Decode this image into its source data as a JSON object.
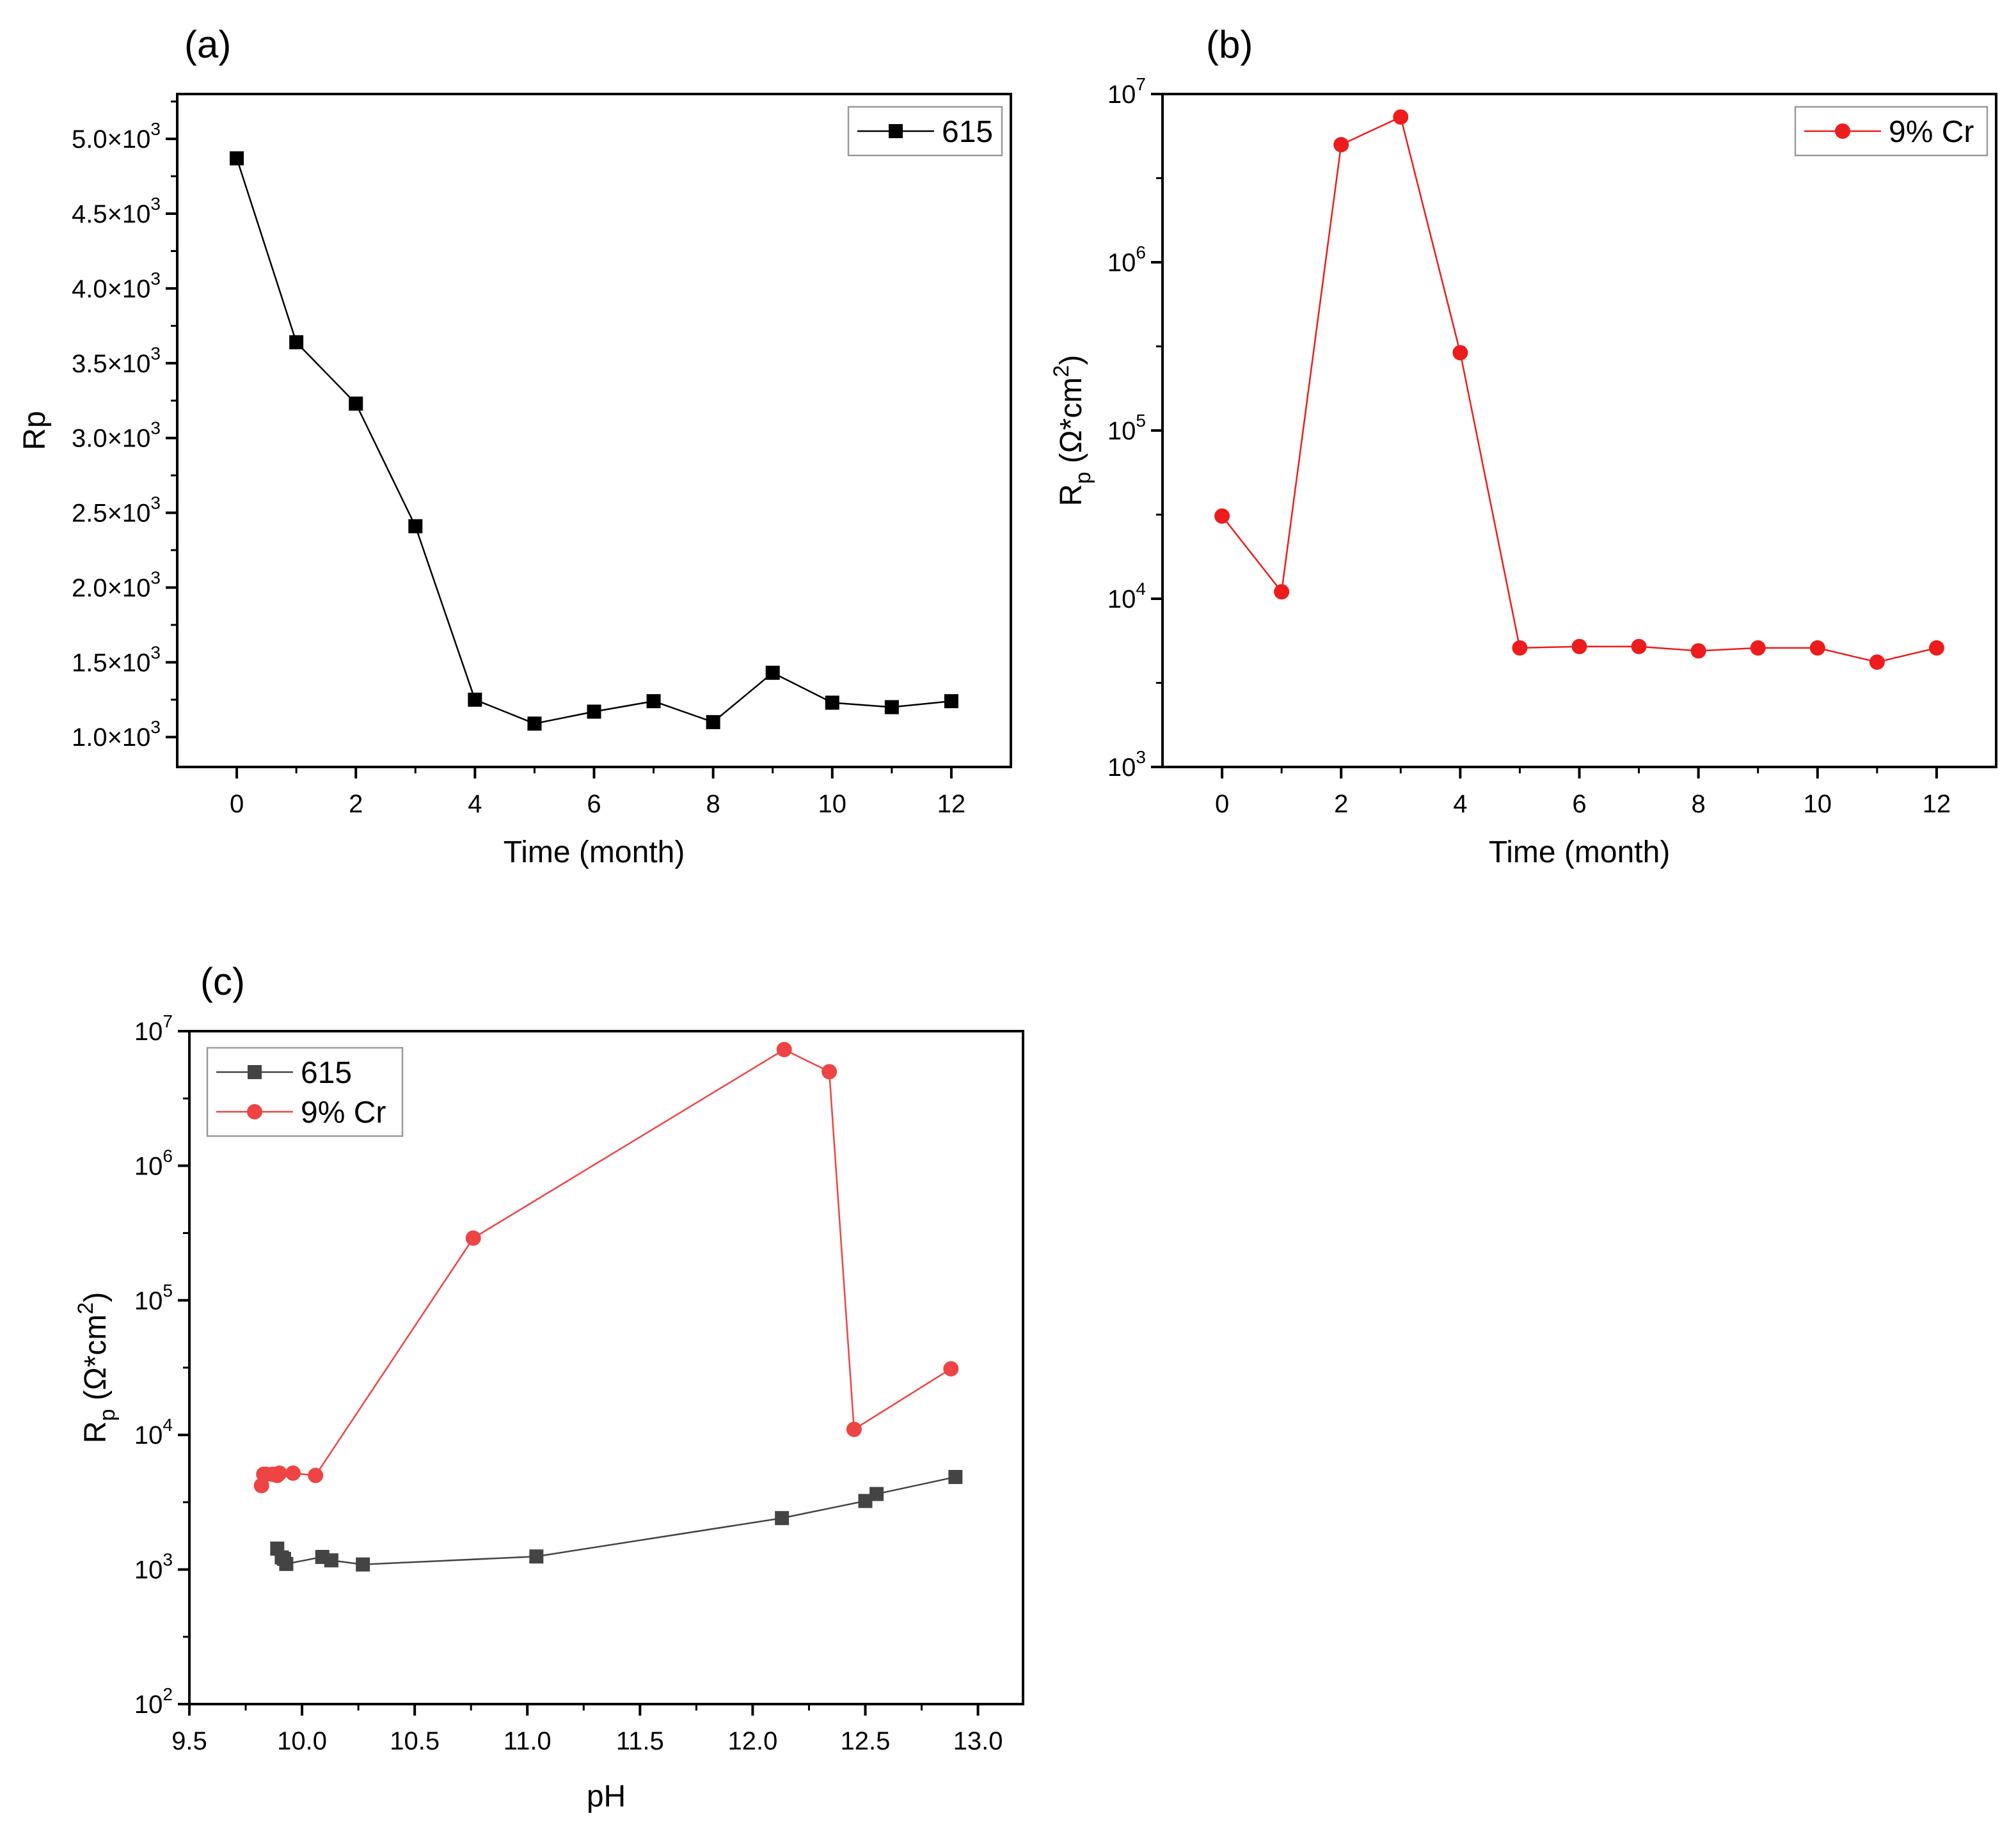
{
  "chart_data": [
    {
      "panel_label": "(a)",
      "type": "line",
      "xlabel": "Time (month)",
      "ylabel": "Rp",
      "xlim": [
        -1,
        13
      ],
      "ylim": [
        800,
        5300
      ],
      "y_scale": "linear",
      "x_ticks": [
        "0",
        "2",
        "4",
        "6",
        "8",
        "10",
        "12"
      ],
      "y_ticks": [
        {
          "mantissa": "1.0",
          "base": "×10",
          "exp": "3"
        },
        {
          "mantissa": "1.5",
          "base": "×10",
          "exp": "3"
        },
        {
          "mantissa": "2.0",
          "base": "×10",
          "exp": "3"
        },
        {
          "mantissa": "2.5",
          "base": "×10",
          "exp": "3"
        },
        {
          "mantissa": "3.0",
          "base": "×10",
          "exp": "3"
        },
        {
          "mantissa": "3.5",
          "base": "×10",
          "exp": "3"
        },
        {
          "mantissa": "4.0",
          "base": "×10",
          "exp": "3"
        },
        {
          "mantissa": "4.5",
          "base": "×10",
          "exp": "3"
        },
        {
          "mantissa": "5.0",
          "base": "×10",
          "exp": "3"
        }
      ],
      "legend_position": "top-right",
      "series": [
        {
          "name": "615",
          "color": "#000000",
          "marker": "square",
          "x": [
            0,
            1,
            2,
            3,
            4,
            5,
            6,
            7,
            8,
            9,
            10,
            11,
            12
          ],
          "values": [
            4870,
            3640,
            3230,
            2410,
            1250,
            1090,
            1170,
            1240,
            1100,
            1430,
            1230,
            1200,
            1240
          ]
        }
      ]
    },
    {
      "panel_label": "(b)",
      "type": "line",
      "xlabel": "Time (month)",
      "ylabel": {
        "main": "R",
        "sub": "p",
        "unit": " (Ω*cm",
        "sup": "2",
        "close": ")"
      },
      "xlim": [
        -1,
        13
      ],
      "ylim": [
        1000,
        10000000
      ],
      "y_scale": "log",
      "x_ticks": [
        "0",
        "2",
        "4",
        "6",
        "8",
        "10",
        "12"
      ],
      "y_ticks": [
        {
          "base": "10",
          "exp": "3"
        },
        {
          "base": "10",
          "exp": "4"
        },
        {
          "base": "10",
          "exp": "5"
        },
        {
          "base": "10",
          "exp": "6"
        },
        {
          "base": "10",
          "exp": "7"
        }
      ],
      "legend_position": "top-right",
      "series": [
        {
          "name": "9% Cr",
          "color": "#ee1c1c",
          "marker": "circle",
          "x": [
            0,
            1,
            2,
            3,
            4,
            5,
            6,
            7,
            8,
            9,
            10,
            11,
            12
          ],
          "values": [
            31000,
            11000,
            5000000,
            7300000,
            290000,
            5100,
            5200,
            5200,
            4900,
            5100,
            5100,
            4200,
            5100
          ]
        }
      ]
    },
    {
      "panel_label": "(c)",
      "type": "line",
      "xlabel": "pH",
      "ylabel": {
        "main": "R",
        "sub": "p",
        "unit": " (Ω*cm",
        "sup": "2",
        "close": ")"
      },
      "xlim": [
        9.5,
        13.2
      ],
      "ylim": [
        100,
        10000000
      ],
      "y_scale": "log",
      "x_ticks": [
        "9.5",
        "10.0",
        "10.5",
        "11.0",
        "11.5",
        "12.0",
        "12.5",
        "13.0"
      ],
      "y_ticks": [
        {
          "base": "10",
          "exp": "2"
        },
        {
          "base": "10",
          "exp": "3"
        },
        {
          "base": "10",
          "exp": "4"
        },
        {
          "base": "10",
          "exp": "5"
        },
        {
          "base": "10",
          "exp": "6"
        },
        {
          "base": "10",
          "exp": "7"
        }
      ],
      "legend_position": "top-left",
      "series": [
        {
          "name": "615",
          "color": "#444444",
          "marker": "square",
          "x": [
            12.9,
            12.55,
            12.5,
            12.13,
            11.04,
            10.27,
            10.13,
            10.09,
            9.93,
            9.92,
            9.91,
            9.89
          ],
          "values": [
            4870,
            3640,
            3230,
            2410,
            1250,
            1090,
            1170,
            1240,
            1100,
            1200,
            1230,
            1430
          ]
        },
        {
          "name": "9% Cr",
          "color": "#ee4444",
          "marker": "circle",
          "x": [
            12.88,
            12.45,
            12.34,
            12.14,
            10.76,
            10.06,
            9.96,
            9.9,
            9.89,
            9.87,
            9.84,
            9.83,
            9.82
          ],
          "values": [
            31000,
            11000,
            5000000,
            7300000,
            290000,
            5000,
            5200,
            5200,
            5000,
            5100,
            5100,
            5100,
            4200
          ]
        }
      ]
    }
  ]
}
